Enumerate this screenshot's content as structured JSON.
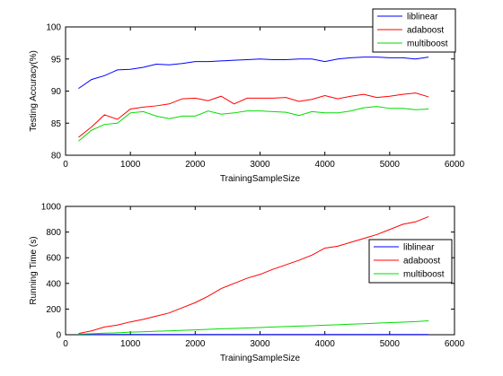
{
  "chart_data": [
    {
      "type": "line",
      "title": "",
      "xlabel": "TrainingSampleSize",
      "ylabel": "Testing Accuracy(%)",
      "xlim": [
        0,
        6000
      ],
      "ylim": [
        80,
        100
      ],
      "xticks": [
        0,
        1000,
        2000,
        3000,
        4000,
        5000,
        6000
      ],
      "yticks": [
        80,
        85,
        90,
        95,
        100
      ],
      "grid": false,
      "legend_position": "top-right",
      "x": [
        200,
        400,
        600,
        800,
        1000,
        1200,
        1400,
        1600,
        1800,
        2000,
        2200,
        2400,
        2600,
        2800,
        3000,
        3200,
        3400,
        3600,
        3800,
        4000,
        4200,
        4400,
        4600,
        4800,
        5000,
        5200,
        5400,
        5600
      ],
      "series": [
        {
          "name": "liblinear",
          "color": "#0000ff",
          "values": [
            90.4,
            91.8,
            92.4,
            93.3,
            93.4,
            93.7,
            94.2,
            94.1,
            94.3,
            94.6,
            94.6,
            94.7,
            94.8,
            94.9,
            95.0,
            94.9,
            94.9,
            95.0,
            95.0,
            94.6,
            95.0,
            95.2,
            95.3,
            95.3,
            95.2,
            95.2,
            95.0,
            95.3
          ]
        },
        {
          "name": "adaboost",
          "color": "#ff0000",
          "values": [
            82.8,
            84.4,
            86.3,
            85.6,
            87.2,
            87.5,
            87.7,
            88.0,
            88.8,
            88.9,
            88.5,
            89.2,
            88.0,
            88.9,
            88.9,
            88.9,
            89.0,
            88.4,
            88.7,
            89.3,
            88.8,
            89.2,
            89.5,
            89.0,
            89.2,
            89.5,
            89.7,
            89.1
          ]
        },
        {
          "name": "multiboost",
          "color": "#00dd00",
          "values": [
            82.2,
            83.9,
            84.8,
            85.0,
            86.6,
            86.8,
            86.1,
            85.7,
            86.1,
            86.1,
            86.9,
            86.4,
            86.6,
            86.9,
            86.9,
            86.8,
            86.7,
            86.2,
            86.8,
            86.6,
            86.6,
            86.9,
            87.4,
            87.6,
            87.3,
            87.3,
            87.1,
            87.2
          ]
        }
      ]
    },
    {
      "type": "line",
      "title": "",
      "xlabel": "TrainingSampleSize",
      "ylabel": "Running Time (s)",
      "xlim": [
        0,
        6000
      ],
      "ylim": [
        0,
        1000
      ],
      "xticks": [
        0,
        1000,
        2000,
        3000,
        4000,
        5000,
        6000
      ],
      "yticks": [
        0,
        200,
        400,
        600,
        800,
        1000
      ],
      "grid": false,
      "legend_position": "right",
      "x": [
        200,
        400,
        600,
        800,
        1000,
        1200,
        1400,
        1600,
        1800,
        2000,
        2200,
        2400,
        2600,
        2800,
        3000,
        3200,
        3400,
        3600,
        3800,
        4000,
        4200,
        4400,
        4600,
        4800,
        5000,
        5200,
        5400,
        5600
      ],
      "series": [
        {
          "name": "liblinear",
          "color": "#0000ff",
          "values": [
            2,
            2,
            2,
            2,
            2,
            2,
            2,
            2,
            2,
            2,
            2,
            2,
            2,
            2,
            2,
            2,
            2,
            2,
            2,
            2,
            2,
            2,
            2,
            2,
            2,
            2,
            2,
            2
          ]
        },
        {
          "name": "adaboost",
          "color": "#ff0000",
          "values": [
            10,
            30,
            60,
            75,
            100,
            120,
            145,
            170,
            210,
            250,
            300,
            360,
            400,
            440,
            470,
            510,
            545,
            580,
            620,
            675,
            690,
            720,
            750,
            780,
            820,
            860,
            880,
            920
          ]
        },
        {
          "name": "multiboost",
          "color": "#00dd00",
          "values": [
            5,
            8,
            12,
            15,
            20,
            23,
            27,
            30,
            34,
            38,
            42,
            46,
            49,
            52,
            56,
            60,
            64,
            67,
            70,
            74,
            78,
            82,
            86,
            90,
            94,
            98,
            102,
            108
          ]
        }
      ]
    }
  ]
}
